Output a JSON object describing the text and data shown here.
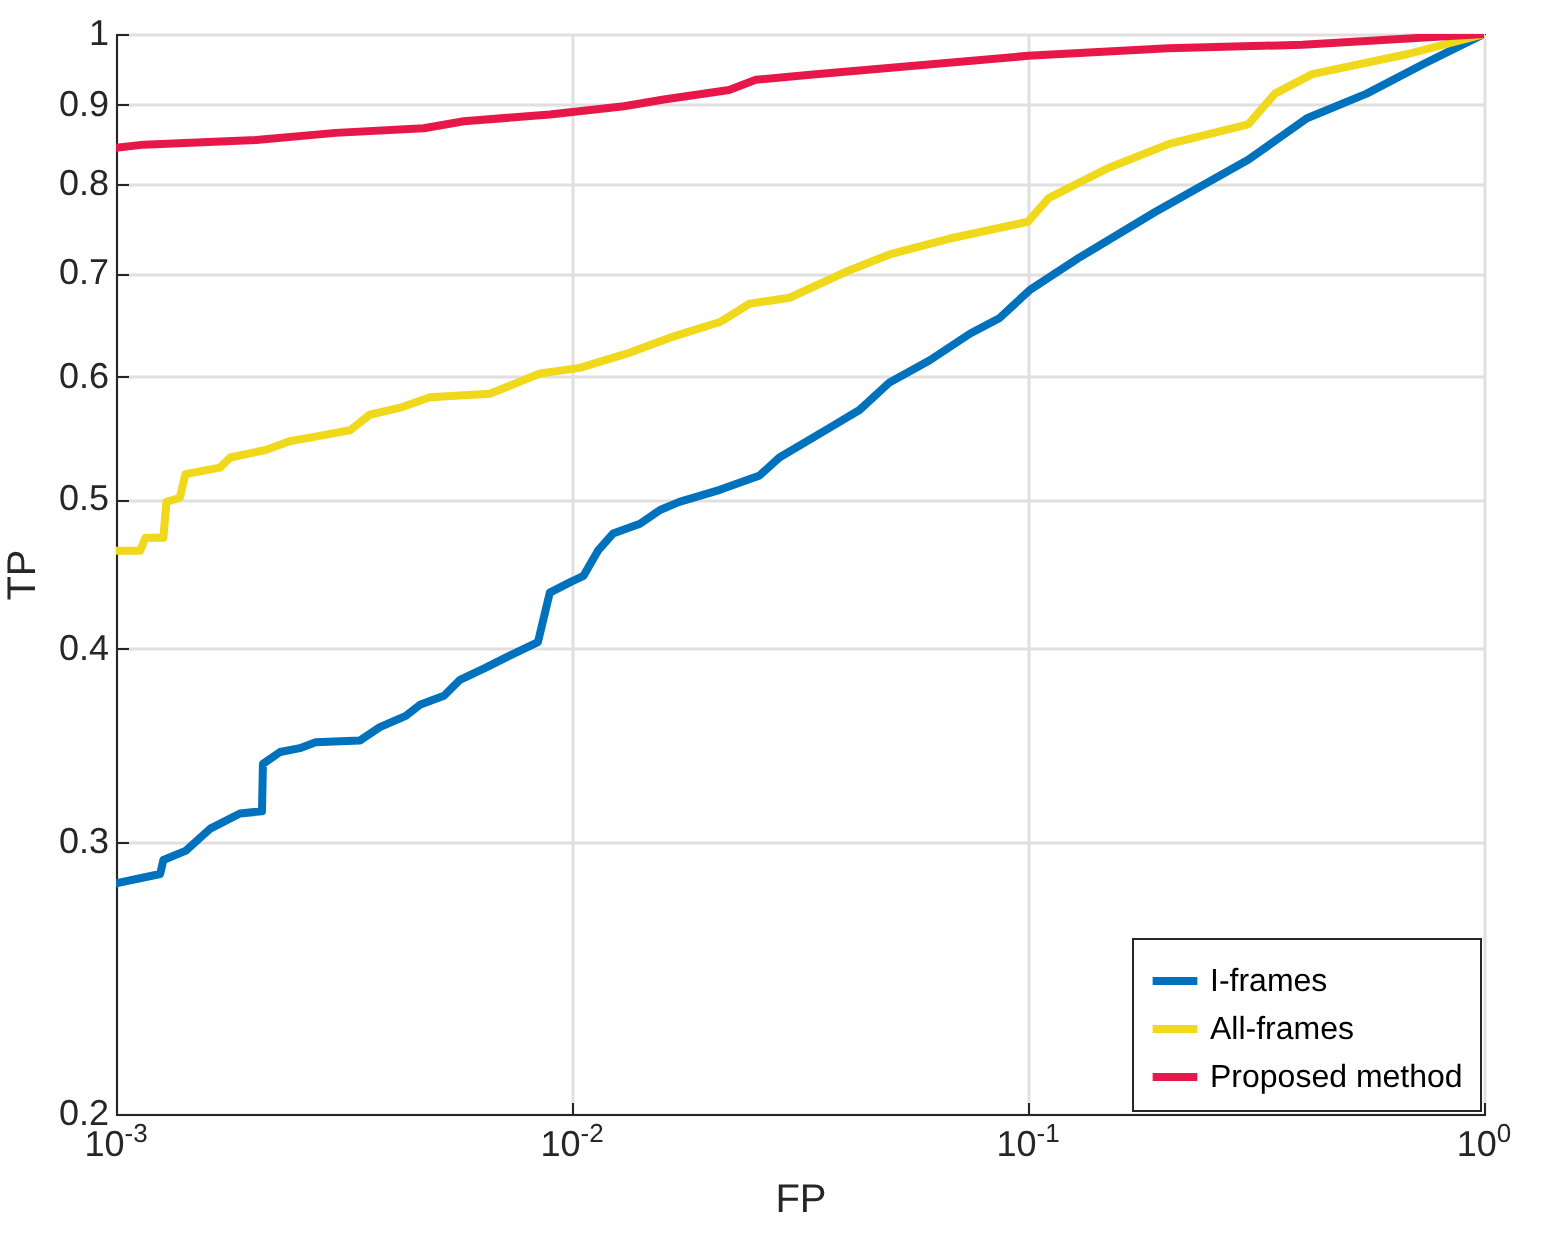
{
  "chart_data": {
    "type": "line",
    "xlabel": "FP",
    "ylabel": "TP",
    "log": "xy",
    "grid": true,
    "legend": "bottom right",
    "marker": "none",
    "line_style": "solid",
    "xlim": [
      0.001,
      1
    ],
    "xticks": [
      {
        "value": 0.001,
        "label": "10$^{-3}$"
      },
      {
        "value": 0.01,
        "label": "10$^{-2}$"
      },
      {
        "value": 0.1,
        "label": "10$^{-1}$"
      },
      {
        "value": 1,
        "label": "10$^{0}$"
      }
    ],
    "ylim": [
      0.2,
      1
    ],
    "yticks": [
      0.2,
      0.3,
      0.4,
      0.5,
      0.6,
      0.7,
      0.8,
      0.9,
      1
    ],
    "series": [
      {
        "name": "I-frames",
        "color": "#0072bd",
        "x": [
          0.001,
          0.00125,
          0.00127,
          0.00142,
          0.00161,
          0.00187,
          0.00209,
          0.0021,
          0.00229,
          0.00253,
          0.00274,
          0.00343,
          0.00379,
          0.00432,
          0.00464,
          0.00524,
          0.00568,
          0.00647,
          0.0073,
          0.00842,
          0.00894,
          0.00994,
          0.0106,
          0.0114,
          0.0123,
          0.0141,
          0.0156,
          0.0172,
          0.0211,
          0.0258,
          0.0285,
          0.0367,
          0.0427,
          0.0497,
          0.0609,
          0.0747,
          0.0867,
          0.101,
          0.129,
          0.19,
          0.304,
          0.409,
          0.553,
          0.735,
          1
        ],
        "values": [
          0.282,
          0.286,
          0.292,
          0.296,
          0.306,
          0.313,
          0.314,
          0.337,
          0.343,
          0.345,
          0.348,
          0.349,
          0.356,
          0.362,
          0.368,
          0.373,
          0.382,
          0.389,
          0.396,
          0.404,
          0.435,
          0.442,
          0.446,
          0.463,
          0.475,
          0.482,
          0.492,
          0.498,
          0.507,
          0.518,
          0.532,
          0.556,
          0.571,
          0.595,
          0.615,
          0.64,
          0.655,
          0.683,
          0.716,
          0.767,
          0.829,
          0.882,
          0.915,
          0.956,
          1
        ]
      },
      {
        "name": "All-frames",
        "color": "#f0d81a",
        "x": [
          0.001,
          0.00113,
          0.00116,
          0.00127,
          0.00129,
          0.00138,
          0.00142,
          0.00169,
          0.00178,
          0.00213,
          0.0024,
          0.00266,
          0.00326,
          0.0036,
          0.0042,
          0.00488,
          0.00661,
          0.0073,
          0.00851,
          0.0104,
          0.0134,
          0.0164,
          0.0211,
          0.0245,
          0.03,
          0.0405,
          0.0497,
          0.067,
          0.1,
          0.111,
          0.15,
          0.204,
          0.304,
          0.348,
          0.42,
          0.685,
          1
        ],
        "values": [
          0.463,
          0.463,
          0.472,
          0.472,
          0.498,
          0.501,
          0.519,
          0.524,
          0.532,
          0.538,
          0.545,
          0.548,
          0.554,
          0.567,
          0.573,
          0.582,
          0.585,
          0.592,
          0.603,
          0.608,
          0.622,
          0.636,
          0.651,
          0.669,
          0.675,
          0.703,
          0.72,
          0.737,
          0.756,
          0.783,
          0.819,
          0.849,
          0.874,
          0.915,
          0.942,
          0.971,
          1
        ]
      },
      {
        "name": "Proposed method",
        "color": "#e8174a",
        "x": [
          0.001,
          0.00115,
          0.00203,
          0.00303,
          0.00473,
          0.00579,
          0.00894,
          0.013,
          0.0159,
          0.0221,
          0.0253,
          0.0333,
          0.1,
          0.203,
          0.4,
          1
        ],
        "values": [
          0.844,
          0.848,
          0.854,
          0.863,
          0.869,
          0.878,
          0.887,
          0.898,
          0.907,
          0.92,
          0.934,
          0.941,
          0.968,
          0.979,
          0.984,
          1
        ]
      }
    ]
  }
}
